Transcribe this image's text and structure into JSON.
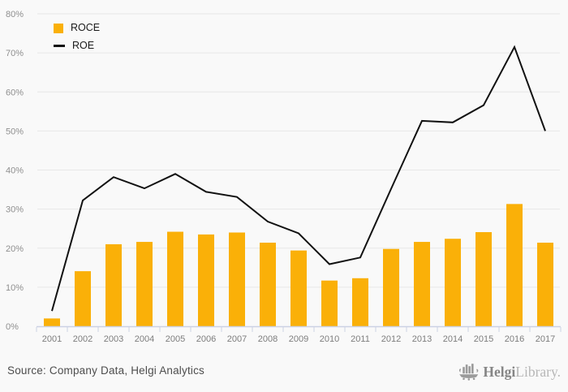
{
  "chart_data": {
    "type": "bar+line",
    "title": "",
    "categories": [
      "2001",
      "2002",
      "2003",
      "2004",
      "2005",
      "2006",
      "2007",
      "2008",
      "2009",
      "2010",
      "2011",
      "2012",
      "2013",
      "2014",
      "2015",
      "2016",
      "2017"
    ],
    "series": [
      {
        "name": "ROCE",
        "type": "bar",
        "color": "#fab008",
        "values": [
          2.0,
          14.1,
          21.0,
          21.6,
          24.2,
          23.5,
          24.0,
          21.4,
          19.4,
          11.7,
          12.3,
          19.8,
          21.6,
          22.4,
          24.1,
          31.3,
          21.4
        ]
      },
      {
        "name": "ROE",
        "type": "line",
        "color": "#111111",
        "values": [
          3.9,
          32.2,
          38.2,
          35.3,
          39.0,
          34.4,
          33.1,
          26.8,
          23.8,
          15.9,
          17.6,
          35.2,
          52.6,
          52.2,
          56.6,
          71.5,
          50.0
        ]
      }
    ],
    "ylim": [
      0,
      80
    ],
    "ytick_step": 10,
    "yticks": [
      "0%",
      "10%",
      "20%",
      "30%",
      "40%",
      "50%",
      "60%",
      "70%",
      "80%"
    ],
    "grid": "horizontal",
    "legend_position": "top-left"
  },
  "footer": {
    "source_text": "Source: Company Data, Helgi Analytics",
    "logo_text_bold": "Helgi",
    "logo_text_light": "Library."
  },
  "colors": {
    "background": "#f9f9f9",
    "bar": "#fab008",
    "line": "#111111",
    "grid": "#e8e8e8",
    "axis": "#ccd2e4",
    "ytick_label": "#8f8f8f",
    "xtick_label": "#7d7d7d",
    "legend_text": "#1a1a1a",
    "source_text": "#4d4d4d",
    "logo_gray": "#9b9b9b"
  }
}
